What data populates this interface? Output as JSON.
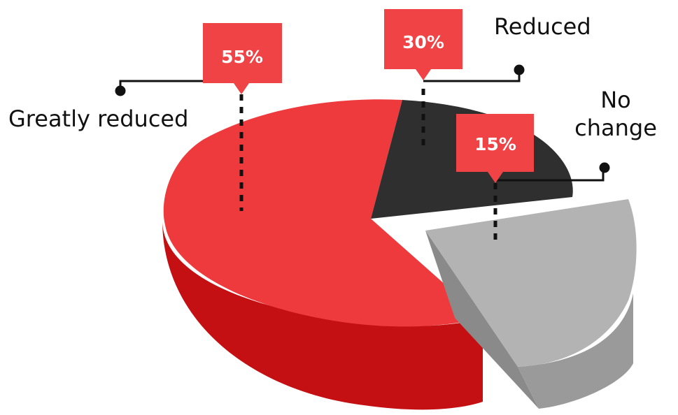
{
  "chart_data": {
    "type": "pie",
    "style": "3d-exploded",
    "slices": [
      {
        "label": "Greatly reduced",
        "value": 55,
        "value_label": "55%",
        "color": "#ee3a3d"
      },
      {
        "label": "Reduced",
        "value": 30,
        "value_label": "30%",
        "color": "#2f2f2f"
      },
      {
        "label": "No change",
        "value": 15,
        "value_label": "15%",
        "color": "#b3b3b3"
      }
    ],
    "colors": {
      "badge": "#ef4346",
      "leader": "#111111",
      "red_side": "#c51013",
      "red_side_dark": "#a50b0e",
      "gray_side": "#8f8f8f",
      "gray_face_dark": "#9d9d9d"
    }
  }
}
